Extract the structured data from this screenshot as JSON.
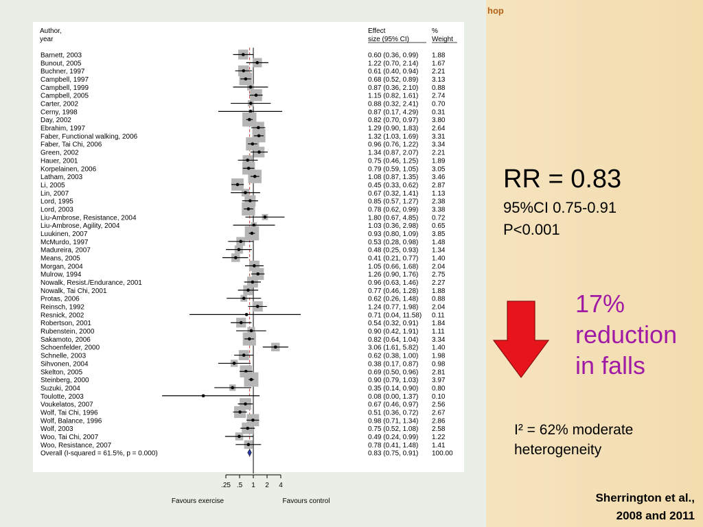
{
  "header_fragment": "hop",
  "stats": {
    "rr": "RR = 0.83",
    "ci": "95%CI 0.75-0.91",
    "p": "P<0.001"
  },
  "reduction": "17%\nreduction\nin falls",
  "heterogeneity": "I² = 62% moderate\nheterogeneity",
  "citation": "Sherrington et al.,\n2008 and 2011",
  "arrow_color": "#e8141c",
  "reduction_color": "#a01aa6",
  "chart_data": {
    "type": "forest",
    "headers": {
      "author_line1": "Author,",
      "author_line2": "year",
      "effect_line1": "Effect",
      "effect_line2": "size (95% CI)",
      "weight_line1": "%",
      "weight_line2": "Weight"
    },
    "x_scale": "log",
    "x_ticks": [
      {
        "value": 0.25,
        "label": ".25"
      },
      {
        "value": 0.5,
        "label": ".5"
      },
      {
        "value": 1,
        "label": "1"
      },
      {
        "value": 2,
        "label": "2"
      },
      {
        "value": 4,
        "label": "4"
      }
    ],
    "favours_left": "Favours exercise",
    "favours_right": "Favours control",
    "studies": [
      {
        "label": "Barnett, 2003",
        "es": 0.6,
        "lo": 0.36,
        "hi": 0.99,
        "ci_text": "0.60 (0.36, 0.99)",
        "weight": "1.88"
      },
      {
        "label": "Bunout, 2005",
        "es": 1.22,
        "lo": 0.7,
        "hi": 2.14,
        "ci_text": "1.22 (0.70, 2.14)",
        "weight": "1.67"
      },
      {
        "label": "Buchner, 1997",
        "es": 0.61,
        "lo": 0.4,
        "hi": 0.94,
        "ci_text": "0.61 (0.40, 0.94)",
        "weight": "2.21"
      },
      {
        "label": "Campbell, 1997",
        "es": 0.68,
        "lo": 0.52,
        "hi": 0.89,
        "ci_text": "0.68 (0.52, 0.89)",
        "weight": "3.13"
      },
      {
        "label": "Campbell, 1999",
        "es": 0.87,
        "lo": 0.36,
        "hi": 2.1,
        "ci_text": "0.87 (0.36, 2.10)",
        "weight": "0.88"
      },
      {
        "label": "Campbell, 2005",
        "es": 1.15,
        "lo": 0.82,
        "hi": 1.61,
        "ci_text": "1.15 (0.82, 1.61)",
        "weight": "2.74"
      },
      {
        "label": "Carter, 2002",
        "es": 0.88,
        "lo": 0.32,
        "hi": 2.41,
        "ci_text": "0.88 (0.32, 2.41)",
        "weight": "0.70"
      },
      {
        "label": "Cerny, 1998",
        "es": 0.87,
        "lo": 0.17,
        "hi": 4.29,
        "ci_text": "0.87 (0.17, 4.29)",
        "weight": "0.31"
      },
      {
        "label": "Day, 2002",
        "es": 0.82,
        "lo": 0.7,
        "hi": 0.97,
        "ci_text": "0.82 (0.70, 0.97)",
        "weight": "3.80"
      },
      {
        "label": "Ebrahim, 1997",
        "es": 1.29,
        "lo": 0.9,
        "hi": 1.83,
        "ci_text": "1.29 (0.90, 1.83)",
        "weight": "2.64"
      },
      {
        "label": "Faber, Functional walking, 2006",
        "es": 1.32,
        "lo": 1.03,
        "hi": 1.69,
        "ci_text": "1.32 (1.03, 1.69)",
        "weight": "3.31"
      },
      {
        "label": "Faber, Tai Chi, 2006",
        "es": 0.96,
        "lo": 0.76,
        "hi": 1.22,
        "ci_text": "0.96 (0.76, 1.22)",
        "weight": "3.34"
      },
      {
        "label": "Green, 2002",
        "es": 1.34,
        "lo": 0.87,
        "hi": 2.07,
        "ci_text": "1.34 (0.87, 2.07)",
        "weight": "2.21"
      },
      {
        "label": "Hauer, 2001",
        "es": 0.75,
        "lo": 0.46,
        "hi": 1.25,
        "ci_text": "0.75 (0.46, 1.25)",
        "weight": "1.89"
      },
      {
        "label": "Korpelainen, 2006",
        "es": 0.79,
        "lo": 0.59,
        "hi": 1.05,
        "ci_text": "0.79 (0.59, 1.05)",
        "weight": "3.05"
      },
      {
        "label": "Latham, 2003",
        "es": 1.08,
        "lo": 0.87,
        "hi": 1.35,
        "ci_text": "1.08 (0.87, 1.35)",
        "weight": "3.46"
      },
      {
        "label": "Li, 2005",
        "es": 0.45,
        "lo": 0.33,
        "hi": 0.62,
        "ci_text": "0.45 (0.33, 0.62)",
        "weight": "2.87"
      },
      {
        "label": "Lin, 2007",
        "es": 0.67,
        "lo": 0.32,
        "hi": 1.41,
        "ci_text": "0.67 (0.32, 1.41)",
        "weight": "1.13"
      },
      {
        "label": "Lord, 1995",
        "es": 0.85,
        "lo": 0.57,
        "hi": 1.27,
        "ci_text": "0.85 (0.57, 1.27)",
        "weight": "2.38"
      },
      {
        "label": "Lord, 2003",
        "es": 0.78,
        "lo": 0.62,
        "hi": 0.99,
        "ci_text": "0.78 (0.62, 0.99)",
        "weight": "3.38"
      },
      {
        "label": "Liu-Ambrose, Resistance, 2004",
        "es": 1.8,
        "lo": 0.67,
        "hi": 4.85,
        "ci_text": "1.80 (0.67, 4.85)",
        "weight": "0.72"
      },
      {
        "label": "Liu-Ambrose, Agility, 2004",
        "es": 1.03,
        "lo": 0.36,
        "hi": 2.98,
        "ci_text": "1.03 (0.36, 2.98)",
        "weight": "0.65"
      },
      {
        "label": "Luukinen, 2007",
        "es": 0.93,
        "lo": 0.8,
        "hi": 1.09,
        "ci_text": "0.93 (0.80, 1.09)",
        "weight": "3.85"
      },
      {
        "label": "McMurdo, 1997",
        "es": 0.53,
        "lo": 0.28,
        "hi": 0.98,
        "ci_text": "0.53 (0.28, 0.98)",
        "weight": "1.48"
      },
      {
        "label": "Madureira, 2007",
        "es": 0.48,
        "lo": 0.25,
        "hi": 0.93,
        "ci_text": "0.48 (0.25, 0.93)",
        "weight": "1.34"
      },
      {
        "label": "Means, 2005",
        "es": 0.41,
        "lo": 0.21,
        "hi": 0.77,
        "ci_text": "0.41 (0.21, 0.77)",
        "weight": "1.40"
      },
      {
        "label": "Morgan, 2004",
        "es": 1.05,
        "lo": 0.66,
        "hi": 1.68,
        "ci_text": "1.05 (0.66, 1.68)",
        "weight": "2.04"
      },
      {
        "label": "Mulrow, 1994",
        "es": 1.26,
        "lo": 0.9,
        "hi": 1.76,
        "ci_text": "1.26 (0.90, 1.76)",
        "weight": "2.75"
      },
      {
        "label": "Nowalk, Resist./Endurance, 2001",
        "es": 0.96,
        "lo": 0.63,
        "hi": 1.46,
        "ci_text": "0.96 (0.63, 1.46)",
        "weight": "2.27"
      },
      {
        "label": "Nowalk, Tai Chi, 2001",
        "es": 0.77,
        "lo": 0.46,
        "hi": 1.28,
        "ci_text": "0.77 (0.46, 1.28)",
        "weight": "1.88"
      },
      {
        "label": "Protas, 2006",
        "es": 0.62,
        "lo": 0.26,
        "hi": 1.48,
        "ci_text": "0.62 (0.26, 1.48)",
        "weight": "0.88"
      },
      {
        "label": "Reinsch, 1992",
        "es": 1.24,
        "lo": 0.77,
        "hi": 1.98,
        "ci_text": "1.24 (0.77, 1.98)",
        "weight": "2.04"
      },
      {
        "label": "Resnick, 2002",
        "es": 0.71,
        "lo": 0.04,
        "hi": 11.58,
        "ci_text": "0.71 (0.04, 11.58)",
        "weight": "0.11"
      },
      {
        "label": "Robertson, 2001",
        "es": 0.54,
        "lo": 0.32,
        "hi": 0.91,
        "ci_text": "0.54 (0.32, 0.91)",
        "weight": "1.84"
      },
      {
        "label": "Rubenstein, 2000",
        "es": 0.9,
        "lo": 0.42,
        "hi": 1.91,
        "ci_text": "0.90 (0.42, 1.91)",
        "weight": "1.11"
      },
      {
        "label": "Sakamoto, 2006",
        "es": 0.82,
        "lo": 0.64,
        "hi": 1.04,
        "ci_text": "0.82 (0.64, 1.04)",
        "weight": "3.34"
      },
      {
        "label": "Schoenfelder, 2000",
        "es": 3.06,
        "lo": 1.61,
        "hi": 5.82,
        "ci_text": "3.06 (1.61, 5.82)",
        "weight": "1.40"
      },
      {
        "label": "Schnelle, 2003",
        "es": 0.62,
        "lo": 0.38,
        "hi": 1.0,
        "ci_text": "0.62 (0.38, 1.00)",
        "weight": "1.98"
      },
      {
        "label": "Sihvonen, 2004",
        "es": 0.38,
        "lo": 0.17,
        "hi": 0.87,
        "ci_text": "0.38 (0.17, 0.87)",
        "weight": "0.98"
      },
      {
        "label": "Skelton, 2005",
        "es": 0.69,
        "lo": 0.5,
        "hi": 0.96,
        "ci_text": "0.69 (0.50, 0.96)",
        "weight": "2.81"
      },
      {
        "label": "Steinberg, 2000",
        "es": 0.9,
        "lo": 0.79,
        "hi": 1.03,
        "ci_text": "0.90 (0.79, 1.03)",
        "weight": "3.97"
      },
      {
        "label": "Suzuki, 2004",
        "es": 0.35,
        "lo": 0.14,
        "hi": 0.9,
        "ci_text": "0.35 (0.14, 0.90)",
        "weight": "0.80"
      },
      {
        "label": "Toulotte, 2003",
        "es": 0.08,
        "lo": 0.0,
        "hi": 1.37,
        "ci_text": "0.08 (0.00, 1.37)",
        "weight": "0.10"
      },
      {
        "label": "Voukelatos, 2007",
        "es": 0.67,
        "lo": 0.46,
        "hi": 0.97,
        "ci_text": "0.67 (0.46, 0.97)",
        "weight": "2.56"
      },
      {
        "label": "Wolf, Tai Chi, 1996",
        "es": 0.51,
        "lo": 0.36,
        "hi": 0.72,
        "ci_text": "0.51 (0.36, 0.72)",
        "weight": "2.67"
      },
      {
        "label": "Wolf, Balance, 1996",
        "es": 0.98,
        "lo": 0.71,
        "hi": 1.34,
        "ci_text": "0.98 (0.71, 1.34)",
        "weight": "2.86"
      },
      {
        "label": "Wolf, 2003",
        "es": 0.75,
        "lo": 0.52,
        "hi": 1.08,
        "ci_text": "0.75 (0.52, 1.08)",
        "weight": "2.58"
      },
      {
        "label": "Woo, Tai Chi, 2007",
        "es": 0.49,
        "lo": 0.24,
        "hi": 0.99,
        "ci_text": "0.49 (0.24, 0.99)",
        "weight": "1.22"
      },
      {
        "label": "Woo, Resistance, 2007",
        "es": 0.78,
        "lo": 0.41,
        "hi": 1.48,
        "ci_text": "0.78 (0.41, 1.48)",
        "weight": "1.41"
      }
    ],
    "overall": {
      "label": "Overall  (I-squared = 61.5%, p = 0.000)",
      "es": 0.83,
      "lo": 0.75,
      "hi": 0.91,
      "ci_text": "0.83 (0.75, 0.91)",
      "weight": "100.00"
    }
  }
}
